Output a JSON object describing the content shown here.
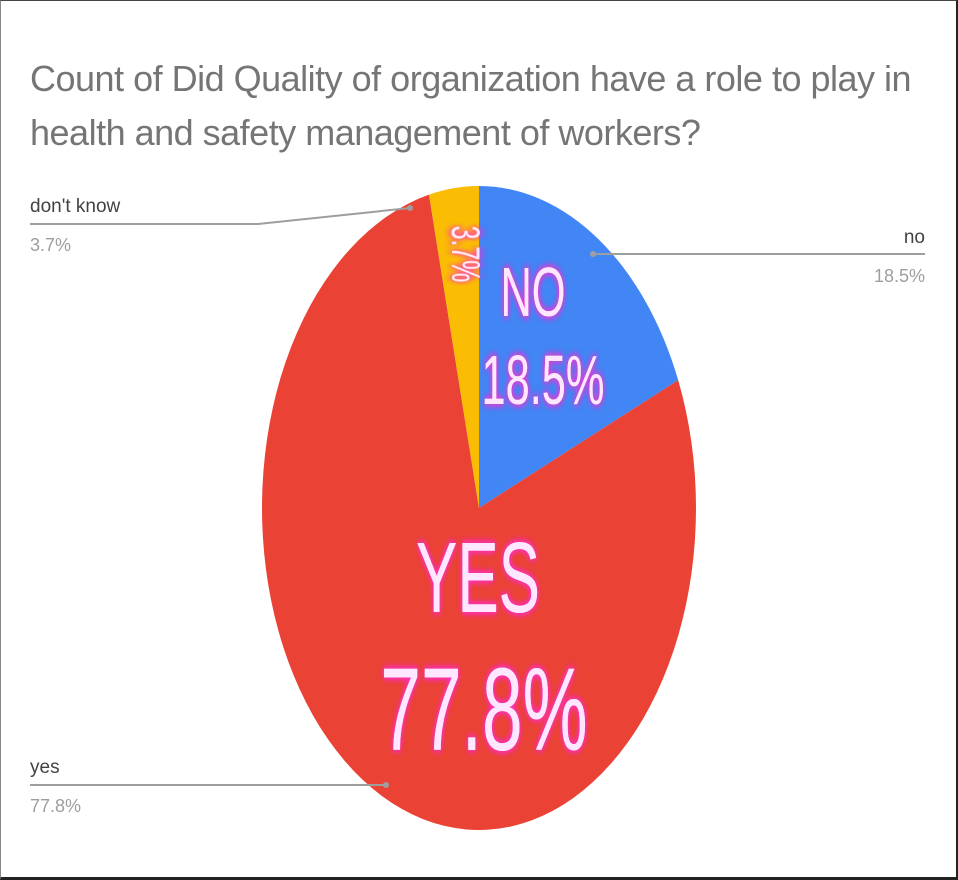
{
  "chart_data": {
    "type": "pie",
    "title": "Count of  Did Quality of organization have a role to play in health and safety management of workers?",
    "slices": [
      {
        "label": "no",
        "value": 18.5,
        "percent_label": "18.5%",
        "inner_label": "NO",
        "color": "#4285f4",
        "legend_side": "right"
      },
      {
        "label": "yes",
        "value": 77.8,
        "percent_label": "77.8%",
        "inner_label": "YES",
        "color": "#ea4335",
        "legend_side": "left"
      },
      {
        "label": "don't know",
        "value": 3.7,
        "percent_label": "3.7%",
        "inner_label": "3.7%",
        "color": "#fbbc04",
        "legend_side": "left"
      }
    ],
    "start_angle_deg": 0,
    "direction": "clockwise"
  },
  "colors": {
    "title": "#757575",
    "leader_line": "#9e9e9e",
    "legend_text": "#424242",
    "legend_percent": "#9e9e9e",
    "inner_text_fill": "#ffe8ff",
    "inner_text_glow": "#ff2fd0"
  }
}
